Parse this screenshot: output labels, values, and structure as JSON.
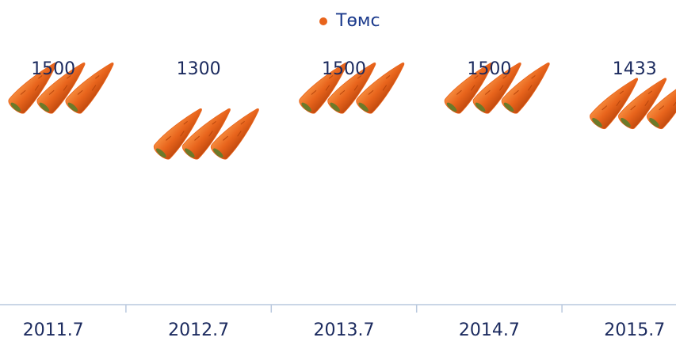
{
  "chart_data": {
    "type": "pictograph",
    "categories": [
      "2011.7",
      "2012.7",
      "2013.7",
      "2014.7",
      "2015.7"
    ],
    "series": [
      {
        "name": "Төмс",
        "color": "#e8641c",
        "values": [
          1500,
          1300,
          1500,
          1500,
          1433
        ]
      }
    ],
    "ylim": [
      550,
      1600
    ]
  }
}
